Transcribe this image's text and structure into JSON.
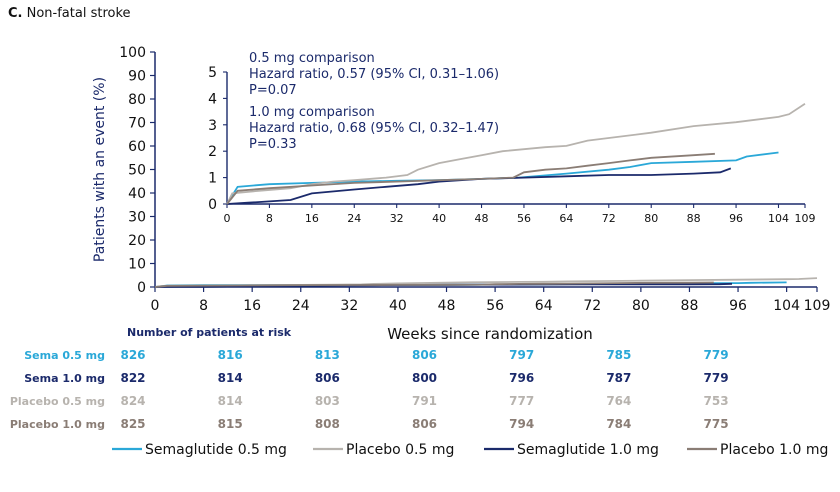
{
  "panel": {
    "letter": "C.",
    "title": "Non-fatal stroke"
  },
  "colors": {
    "sema05": "#2aa8d8",
    "sema10": "#1b2a6b",
    "pbo05": "#b7b3ae",
    "pbo10": "#8a7d75",
    "axis": "#1b2a6b"
  },
  "chart_data": {
    "type": "line",
    "xlabel": "Weeks since randomization",
    "ylabel": "Patients with an event (%)",
    "xticks": [
      0,
      8,
      16,
      24,
      32,
      40,
      48,
      56,
      64,
      72,
      80,
      88,
      96,
      104,
      109
    ],
    "yticks": [
      0,
      10,
      20,
      30,
      40,
      50,
      60,
      70,
      80,
      90,
      100
    ],
    "xlim": [
      0,
      109
    ],
    "ylim": [
      0,
      100
    ],
    "series": [
      {
        "name": "Semaglutide 0.5 mg",
        "color": "#2aa8d8",
        "points": [
          [
            0,
            0
          ],
          [
            2,
            0.65
          ],
          [
            8,
            0.75
          ],
          [
            16,
            0.8
          ],
          [
            24,
            0.85
          ],
          [
            32,
            0.88
          ],
          [
            40,
            0.9
          ],
          [
            48,
            0.95
          ],
          [
            55,
            1.0
          ],
          [
            64,
            1.15
          ],
          [
            72,
            1.3
          ],
          [
            76,
            1.4
          ],
          [
            80,
            1.55
          ],
          [
            88,
            1.6
          ],
          [
            96,
            1.65
          ],
          [
            98,
            1.8
          ],
          [
            104,
            1.95
          ]
        ]
      },
      {
        "name": "Placebo 0.5 mg",
        "color": "#b7b3ae",
        "points": [
          [
            0,
            0
          ],
          [
            1,
            0.4
          ],
          [
            6,
            0.5
          ],
          [
            12,
            0.6
          ],
          [
            16,
            0.75
          ],
          [
            20,
            0.85
          ],
          [
            24,
            0.9
          ],
          [
            30,
            1.0
          ],
          [
            34,
            1.1
          ],
          [
            36,
            1.3
          ],
          [
            40,
            1.55
          ],
          [
            44,
            1.7
          ],
          [
            48,
            1.85
          ],
          [
            52,
            2.0
          ],
          [
            60,
            2.15
          ],
          [
            64,
            2.2
          ],
          [
            68,
            2.4
          ],
          [
            72,
            2.5
          ],
          [
            80,
            2.7
          ],
          [
            88,
            2.95
          ],
          [
            96,
            3.1
          ],
          [
            104,
            3.3
          ],
          [
            106,
            3.4
          ],
          [
            109,
            3.8
          ]
        ]
      },
      {
        "name": "Semaglutide 1.0 mg",
        "color": "#1b2a6b",
        "points": [
          [
            0,
            0
          ],
          [
            4,
            0.05
          ],
          [
            8,
            0.1
          ],
          [
            12,
            0.15
          ],
          [
            16,
            0.4
          ],
          [
            24,
            0.55
          ],
          [
            30,
            0.65
          ],
          [
            36,
            0.75
          ],
          [
            40,
            0.85
          ],
          [
            48,
            0.95
          ],
          [
            56,
            1.0
          ],
          [
            64,
            1.05
          ],
          [
            72,
            1.1
          ],
          [
            80,
            1.1
          ],
          [
            88,
            1.15
          ],
          [
            93,
            1.2
          ],
          [
            95,
            1.35
          ]
        ]
      },
      {
        "name": "Placebo 1.0 mg",
        "color": "#8a7d75",
        "points": [
          [
            0,
            0
          ],
          [
            2,
            0.5
          ],
          [
            8,
            0.6
          ],
          [
            16,
            0.7
          ],
          [
            24,
            0.8
          ],
          [
            32,
            0.85
          ],
          [
            40,
            0.9
          ],
          [
            48,
            0.95
          ],
          [
            54,
            1.0
          ],
          [
            56,
            1.2
          ],
          [
            60,
            1.3
          ],
          [
            64,
            1.35
          ],
          [
            68,
            1.45
          ],
          [
            72,
            1.55
          ],
          [
            76,
            1.65
          ],
          [
            80,
            1.75
          ],
          [
            88,
            1.85
          ],
          [
            92,
            1.9
          ]
        ]
      }
    ],
    "inset": {
      "ylim": [
        0,
        5
      ],
      "yticks": [
        0,
        1,
        2,
        3,
        4,
        5
      ],
      "xticks": [
        0,
        8,
        16,
        24,
        32,
        40,
        48,
        56,
        64,
        72,
        80,
        88,
        96,
        104,
        109
      ],
      "xlim": [
        0,
        109
      ],
      "annotations": [
        {
          "lines": [
            "0.5 mg comparison",
            "Hazard ratio, 0.57 (95% CI, 0.31–1.06)",
            "P=0.07"
          ]
        },
        {
          "lines": [
            "1.0 mg comparison",
            "Hazard ratio, 0.68 (95% CI, 0.32–1.47)",
            "P=0.33"
          ]
        }
      ]
    },
    "risk_table": {
      "title": "Number of patients at risk",
      "weeks": [
        0,
        16,
        32,
        48,
        64,
        80,
        96
      ],
      "rows": [
        {
          "label": "Sema 0.5 mg",
          "color": "#2aa8d8",
          "values": [
            "826",
            "816",
            "813",
            "806",
            "797",
            "785",
            "779"
          ]
        },
        {
          "label": "Sema 1.0 mg",
          "color": "#1b2a6b",
          "values": [
            "822",
            "814",
            "806",
            "800",
            "796",
            "787",
            "779"
          ]
        },
        {
          "label": "Placebo 0.5 mg",
          "color": "#b7b3ae",
          "values": [
            "824",
            "814",
            "803",
            "791",
            "777",
            "764",
            "753"
          ]
        },
        {
          "label": "Placebo 1.0 mg",
          "color": "#8a7d75",
          "values": [
            "825",
            "815",
            "808",
            "806",
            "794",
            "784",
            "775"
          ]
        }
      ]
    },
    "legend": [
      "Semaglutide 0.5 mg",
      "Placebo 0.5 mg",
      "Semaglutide 1.0 mg",
      "Placebo 1.0 mg"
    ],
    "legend_position": "bottom"
  }
}
